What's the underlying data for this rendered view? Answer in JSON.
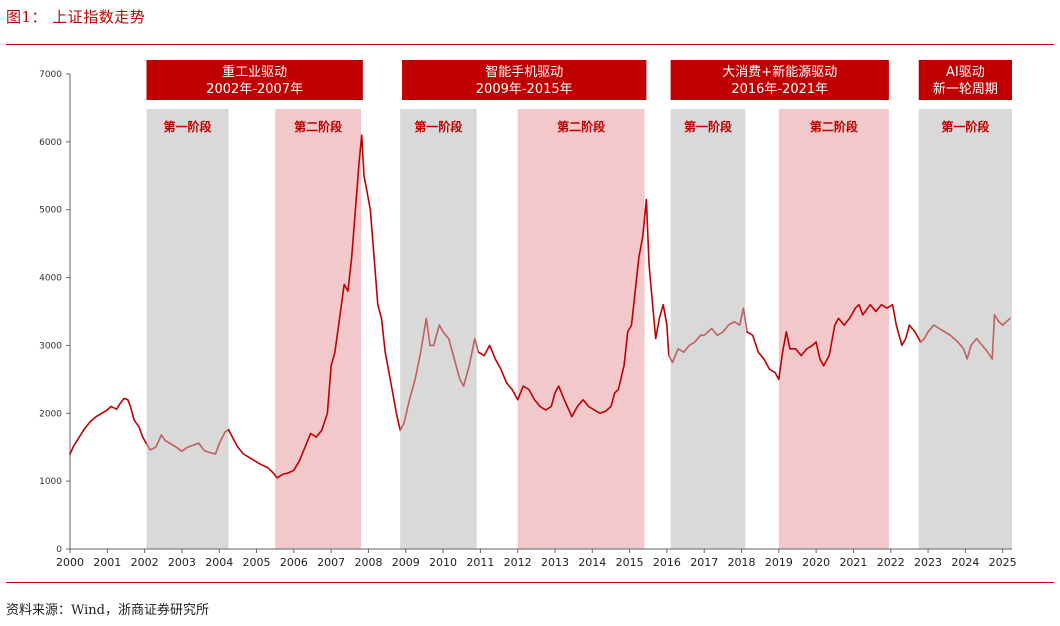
{
  "figure": {
    "title": "图1：  上证指数走势",
    "source": "资料来源：Wind，浙商证券研究所"
  },
  "colors": {
    "accent": "#c00000",
    "line_strong": "#c00000",
    "line_soft": "#c06060",
    "band_grey": "#d9d9d9",
    "band_pink": "#f2c8cb",
    "phase_text": "#c00000",
    "banner_text": "#ffffff"
  },
  "chart_data": {
    "type": "line",
    "title": "上证指数走势",
    "xlabel": "",
    "ylabel": "",
    "xlim": [
      2000.0,
      2025.25
    ],
    "ylim": [
      0,
      7000
    ],
    "y_ticks": [
      0,
      1000,
      2000,
      3000,
      4000,
      5000,
      6000,
      7000
    ],
    "x_ticks": [
      "2000",
      "2001",
      "2002",
      "2003",
      "2004",
      "2005",
      "2006",
      "2007",
      "2008",
      "2009",
      "2010",
      "2011",
      "2012",
      "2013",
      "2014",
      "2015",
      "2016",
      "2017",
      "2018",
      "2019",
      "2020",
      "2021",
      "2022",
      "2023",
      "2024",
      "2025"
    ],
    "grid": false,
    "legend": "none",
    "banners": [
      {
        "line1": "重工业驱动",
        "line2": "2002年-2007年",
        "x_start": 2002.05,
        "x_end": 2007.85
      },
      {
        "line1": "智能手机驱动",
        "line2": "2009年-2015年",
        "x_start": 2008.9,
        "x_end": 2015.45
      },
      {
        "line1": "大消费+新能源驱动",
        "line2": "2016年-2021年",
        "x_start": 2016.1,
        "x_end": 2021.95
      },
      {
        "line1": "AI驱动",
        "line2": "新一轮周期",
        "x_start": 2022.75,
        "x_end": 2025.25
      }
    ],
    "phases": [
      {
        "label": "第一阶段",
        "x_start": 2002.05,
        "x_end": 2004.25,
        "style": "grey"
      },
      {
        "label": "第二阶段",
        "x_start": 2005.5,
        "x_end": 2007.8,
        "style": "pink"
      },
      {
        "label": "第一阶段",
        "x_start": 2008.85,
        "x_end": 2010.9,
        "style": "grey"
      },
      {
        "label": "第二阶段",
        "x_start": 2012.0,
        "x_end": 2015.4,
        "style": "pink"
      },
      {
        "label": "第一阶段",
        "x_start": 2016.1,
        "x_end": 2018.1,
        "style": "grey"
      },
      {
        "label": "第二阶段",
        "x_start": 2019.0,
        "x_end": 2021.95,
        "style": "pink"
      },
      {
        "label": "第一阶段",
        "x_start": 2022.75,
        "x_end": 2025.25,
        "style": "grey"
      }
    ],
    "series": [
      {
        "points": [
          [
            2000.0,
            1400
          ],
          [
            2000.1,
            1520
          ],
          [
            2000.25,
            1650
          ],
          [
            2000.4,
            1780
          ],
          [
            2000.55,
            1880
          ],
          [
            2000.7,
            1950
          ],
          [
            2000.85,
            2000
          ],
          [
            2001.0,
            2050
          ],
          [
            2001.1,
            2100
          ],
          [
            2001.25,
            2060
          ],
          [
            2001.35,
            2150
          ],
          [
            2001.45,
            2220
          ],
          [
            2001.55,
            2200
          ],
          [
            2001.62,
            2100
          ],
          [
            2001.72,
            1900
          ],
          [
            2001.85,
            1800
          ],
          [
            2001.95,
            1650
          ],
          [
            2002.05,
            1550
          ],
          [
            2002.15,
            1460
          ],
          [
            2002.3,
            1500
          ],
          [
            2002.45,
            1680
          ],
          [
            2002.55,
            1600
          ],
          [
            2002.7,
            1550
          ],
          [
            2002.85,
            1500
          ],
          [
            2003.0,
            1440
          ],
          [
            2003.15,
            1500
          ],
          [
            2003.3,
            1530
          ],
          [
            2003.45,
            1560
          ],
          [
            2003.6,
            1450
          ],
          [
            2003.75,
            1420
          ],
          [
            2003.9,
            1400
          ],
          [
            2004.0,
            1550
          ],
          [
            2004.15,
            1720
          ],
          [
            2004.25,
            1760
          ],
          [
            2004.35,
            1650
          ],
          [
            2004.5,
            1500
          ],
          [
            2004.65,
            1400
          ],
          [
            2004.8,
            1350
          ],
          [
            2004.95,
            1300
          ],
          [
            2005.1,
            1250
          ],
          [
            2005.3,
            1200
          ],
          [
            2005.45,
            1120
          ],
          [
            2005.55,
            1050
          ],
          [
            2005.7,
            1100
          ],
          [
            2005.85,
            1120
          ],
          [
            2006.0,
            1160
          ],
          [
            2006.15,
            1300
          ],
          [
            2006.3,
            1500
          ],
          [
            2006.45,
            1700
          ],
          [
            2006.6,
            1650
          ],
          [
            2006.75,
            1750
          ],
          [
            2006.9,
            2000
          ],
          [
            2007.0,
            2700
          ],
          [
            2007.1,
            2900
          ],
          [
            2007.25,
            3500
          ],
          [
            2007.35,
            3900
          ],
          [
            2007.45,
            3800
          ],
          [
            2007.55,
            4300
          ],
          [
            2007.65,
            5000
          ],
          [
            2007.75,
            5700
          ],
          [
            2007.82,
            6100
          ],
          [
            2007.88,
            5500
          ],
          [
            2007.95,
            5300
          ],
          [
            2008.05,
            5000
          ],
          [
            2008.15,
            4300
          ],
          [
            2008.25,
            3600
          ],
          [
            2008.35,
            3400
          ],
          [
            2008.45,
            2900
          ],
          [
            2008.55,
            2600
          ],
          [
            2008.65,
            2300
          ],
          [
            2008.75,
            2000
          ],
          [
            2008.85,
            1750
          ],
          [
            2008.95,
            1850
          ],
          [
            2009.1,
            2200
          ],
          [
            2009.25,
            2500
          ],
          [
            2009.4,
            2900
          ],
          [
            2009.55,
            3400
          ],
          [
            2009.65,
            3000
          ],
          [
            2009.75,
            3000
          ],
          [
            2009.9,
            3300
          ],
          [
            2010.0,
            3200
          ],
          [
            2010.15,
            3100
          ],
          [
            2010.3,
            2800
          ],
          [
            2010.45,
            2500
          ],
          [
            2010.55,
            2400
          ],
          [
            2010.7,
            2700
          ],
          [
            2010.85,
            3100
          ],
          [
            2010.95,
            2900
          ],
          [
            2011.1,
            2850
          ],
          [
            2011.25,
            3000
          ],
          [
            2011.4,
            2800
          ],
          [
            2011.55,
            2650
          ],
          [
            2011.7,
            2450
          ],
          [
            2011.85,
            2350
          ],
          [
            2012.0,
            2200
          ],
          [
            2012.15,
            2400
          ],
          [
            2012.3,
            2350
          ],
          [
            2012.45,
            2200
          ],
          [
            2012.6,
            2100
          ],
          [
            2012.75,
            2050
          ],
          [
            2012.9,
            2100
          ],
          [
            2013.0,
            2300
          ],
          [
            2013.1,
            2400
          ],
          [
            2013.25,
            2200
          ],
          [
            2013.45,
            1950
          ],
          [
            2013.6,
            2100
          ],
          [
            2013.75,
            2200
          ],
          [
            2013.9,
            2100
          ],
          [
            2014.05,
            2050
          ],
          [
            2014.2,
            2000
          ],
          [
            2014.35,
            2030
          ],
          [
            2014.5,
            2100
          ],
          [
            2014.6,
            2300
          ],
          [
            2014.7,
            2350
          ],
          [
            2014.85,
            2700
          ],
          [
            2014.95,
            3200
          ],
          [
            2015.05,
            3300
          ],
          [
            2015.15,
            3800
          ],
          [
            2015.25,
            4300
          ],
          [
            2015.35,
            4600
          ],
          [
            2015.45,
            5150
          ],
          [
            2015.52,
            4200
          ],
          [
            2015.6,
            3700
          ],
          [
            2015.7,
            3100
          ],
          [
            2015.8,
            3400
          ],
          [
            2015.9,
            3600
          ],
          [
            2016.0,
            3300
          ],
          [
            2016.05,
            2850
          ],
          [
            2016.15,
            2750
          ],
          [
            2016.3,
            2950
          ],
          [
            2016.45,
            2900
          ],
          [
            2016.6,
            3000
          ],
          [
            2016.75,
            3050
          ],
          [
            2016.9,
            3150
          ],
          [
            2017.0,
            3150
          ],
          [
            2017.2,
            3250
          ],
          [
            2017.35,
            3150
          ],
          [
            2017.5,
            3200
          ],
          [
            2017.65,
            3300
          ],
          [
            2017.8,
            3350
          ],
          [
            2017.95,
            3300
          ],
          [
            2018.05,
            3550
          ],
          [
            2018.15,
            3200
          ],
          [
            2018.3,
            3150
          ],
          [
            2018.45,
            2900
          ],
          [
            2018.6,
            2800
          ],
          [
            2018.75,
            2650
          ],
          [
            2018.9,
            2600
          ],
          [
            2019.0,
            2500
          ],
          [
            2019.1,
            2900
          ],
          [
            2019.2,
            3200
          ],
          [
            2019.3,
            2950
          ],
          [
            2019.45,
            2950
          ],
          [
            2019.6,
            2850
          ],
          [
            2019.75,
            2950
          ],
          [
            2019.9,
            3000
          ],
          [
            2020.0,
            3050
          ],
          [
            2020.1,
            2800
          ],
          [
            2020.2,
            2700
          ],
          [
            2020.35,
            2850
          ],
          [
            2020.5,
            3300
          ],
          [
            2020.6,
            3400
          ],
          [
            2020.75,
            3300
          ],
          [
            2020.9,
            3400
          ],
          [
            2021.05,
            3550
          ],
          [
            2021.15,
            3600
          ],
          [
            2021.25,
            3450
          ],
          [
            2021.45,
            3600
          ],
          [
            2021.6,
            3500
          ],
          [
            2021.75,
            3600
          ],
          [
            2021.9,
            3550
          ],
          [
            2022.05,
            3600
          ],
          [
            2022.15,
            3300
          ],
          [
            2022.3,
            3000
          ],
          [
            2022.4,
            3100
          ],
          [
            2022.5,
            3300
          ],
          [
            2022.65,
            3200
          ],
          [
            2022.8,
            3050
          ],
          [
            2022.9,
            3100
          ],
          [
            2023.0,
            3200
          ],
          [
            2023.15,
            3300
          ],
          [
            2023.3,
            3250
          ],
          [
            2023.45,
            3200
          ],
          [
            2023.6,
            3150
          ],
          [
            2023.8,
            3050
          ],
          [
            2023.95,
            2950
          ],
          [
            2024.05,
            2800
          ],
          [
            2024.15,
            3000
          ],
          [
            2024.3,
            3100
          ],
          [
            2024.45,
            3000
          ],
          [
            2024.6,
            2900
          ],
          [
            2024.72,
            2800
          ],
          [
            2024.78,
            3450
          ],
          [
            2024.9,
            3350
          ],
          [
            2025.0,
            3300
          ],
          [
            2025.1,
            3350
          ],
          [
            2025.2,
            3400
          ]
        ]
      }
    ]
  }
}
